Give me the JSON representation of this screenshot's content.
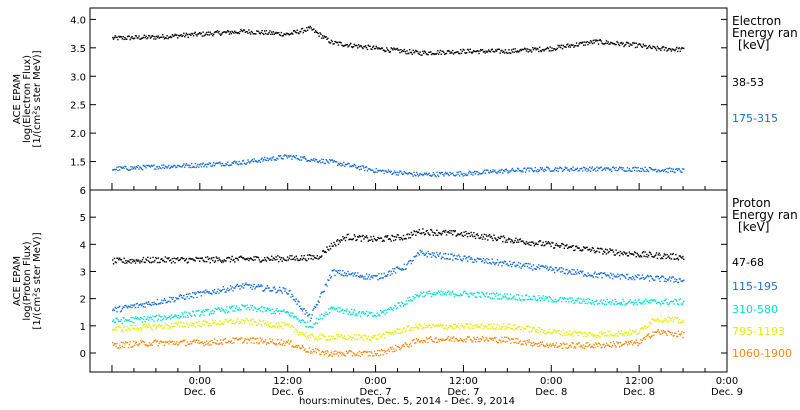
{
  "chart_data": [
    {
      "type": "scatter",
      "panel": "electron",
      "ylabel": [
        "ACE EPAM",
        "log(Electron Flux)",
        "[1/(cm²s ster MeV)]"
      ],
      "ylim": [
        1.0,
        4.2
      ],
      "yticks": [
        "1.5",
        "2.0",
        "2.5",
        "3.0",
        "3.5",
        "4.0"
      ],
      "legend": {
        "title": [
          "Electron",
          "Energy ran",
          "[keV]"
        ],
        "position": "right"
      },
      "series": [
        {
          "name": "38-53",
          "color": "#000000",
          "x_hours": [
            -12,
            -6,
            0,
            6,
            12,
            15,
            18,
            24,
            30,
            36,
            42,
            48,
            54,
            60,
            62,
            66
          ],
          "y": [
            3.68,
            3.7,
            3.75,
            3.8,
            3.75,
            3.85,
            3.6,
            3.5,
            3.42,
            3.45,
            3.45,
            3.5,
            3.62,
            3.55,
            3.5,
            3.48
          ]
        },
        {
          "name": "175-315",
          "color": "#1a6fd0",
          "x_hours": [
            -12,
            -6,
            0,
            6,
            12,
            18,
            24,
            30,
            36,
            42,
            48,
            54,
            60,
            66
          ],
          "y": [
            1.38,
            1.42,
            1.45,
            1.5,
            1.6,
            1.5,
            1.35,
            1.28,
            1.3,
            1.35,
            1.38,
            1.38,
            1.38,
            1.35
          ]
        }
      ]
    },
    {
      "type": "scatter",
      "panel": "proton",
      "ylabel": [
        "ACE EPAM",
        "log(Proton Flux)",
        "[1/(cm²s ster MeV)]"
      ],
      "ylim": [
        -0.7,
        6
      ],
      "yticks": [
        "0",
        "1",
        "2",
        "3",
        "4",
        "5",
        "6"
      ],
      "legend": {
        "title": [
          "Proton",
          "Energy ran",
          "[keV]"
        ],
        "position": "right"
      },
      "series": [
        {
          "name": "47-68",
          "color": "#000000",
          "x_hours": [
            -12,
            -6,
            0,
            6,
            12,
            16,
            18,
            20,
            24,
            28,
            30,
            36,
            42,
            48,
            54,
            60,
            66
          ],
          "y": [
            3.4,
            3.45,
            3.45,
            3.48,
            3.5,
            3.55,
            4.0,
            4.3,
            4.2,
            4.3,
            4.5,
            4.4,
            4.2,
            4.0,
            3.8,
            3.65,
            3.55
          ]
        },
        {
          "name": "115-195",
          "color": "#1a6fd0",
          "x_hours": [
            -12,
            -6,
            0,
            6,
            12,
            15,
            18,
            21,
            24,
            28,
            30,
            36,
            42,
            48,
            54,
            60,
            66
          ],
          "y": [
            1.6,
            1.9,
            2.2,
            2.5,
            2.3,
            1.3,
            3.0,
            2.9,
            2.8,
            3.2,
            3.7,
            3.5,
            3.3,
            3.1,
            2.9,
            2.8,
            2.7
          ]
        },
        {
          "name": "310-580",
          "color": "#00e0d0",
          "x_hours": [
            -12,
            -6,
            0,
            6,
            12,
            15,
            18,
            21,
            24,
            28,
            30,
            36,
            42,
            48,
            54,
            60,
            66
          ],
          "y": [
            1.2,
            1.3,
            1.5,
            1.7,
            1.5,
            1.0,
            1.7,
            1.5,
            1.4,
            1.9,
            2.2,
            2.2,
            2.1,
            2.0,
            1.9,
            1.9,
            1.9
          ]
        },
        {
          "name": "795-1193",
          "color": "#e0f000",
          "x_hours": [
            -12,
            -6,
            0,
            6,
            12,
            15,
            18,
            24,
            28,
            30,
            36,
            42,
            48,
            54,
            60,
            62,
            66
          ],
          "y": [
            0.9,
            1.0,
            1.1,
            1.2,
            1.0,
            0.6,
            0.6,
            0.6,
            0.9,
            1.0,
            1.0,
            1.0,
            0.8,
            0.7,
            0.8,
            1.3,
            1.2
          ]
        },
        {
          "name": "1060-1900",
          "color": "#f08a10",
          "x_hours": [
            -12,
            -6,
            0,
            6,
            12,
            15,
            18,
            24,
            28,
            30,
            36,
            42,
            48,
            54,
            60,
            62,
            66
          ],
          "y": [
            0.3,
            0.4,
            0.4,
            0.5,
            0.4,
            0.1,
            0.0,
            0.0,
            0.3,
            0.5,
            0.55,
            0.5,
            0.3,
            0.3,
            0.4,
            0.8,
            0.7
          ]
        }
      ]
    }
  ],
  "x_axis": {
    "xlim_hours": [
      -15,
      72
    ],
    "ticks": [
      {
        "hour": 0,
        "time": "0:00",
        "day": "Dec. 6"
      },
      {
        "hour": 12,
        "time": "12:00",
        "day": "Dec. 6"
      },
      {
        "hour": 24,
        "time": "0:00",
        "day": "Dec. 7"
      },
      {
        "hour": 36,
        "time": "12:00",
        "day": "Dec. 7"
      },
      {
        "hour": 48,
        "time": "0:00",
        "day": "Dec. 8"
      },
      {
        "hour": 60,
        "time": "12:00",
        "day": "Dec. 8"
      },
      {
        "hour": 72,
        "time": "0:00",
        "day": "Dec. 9"
      }
    ],
    "label": "hours:minutes, Dec.  5, 2014 - Dec.  9, 2014"
  }
}
